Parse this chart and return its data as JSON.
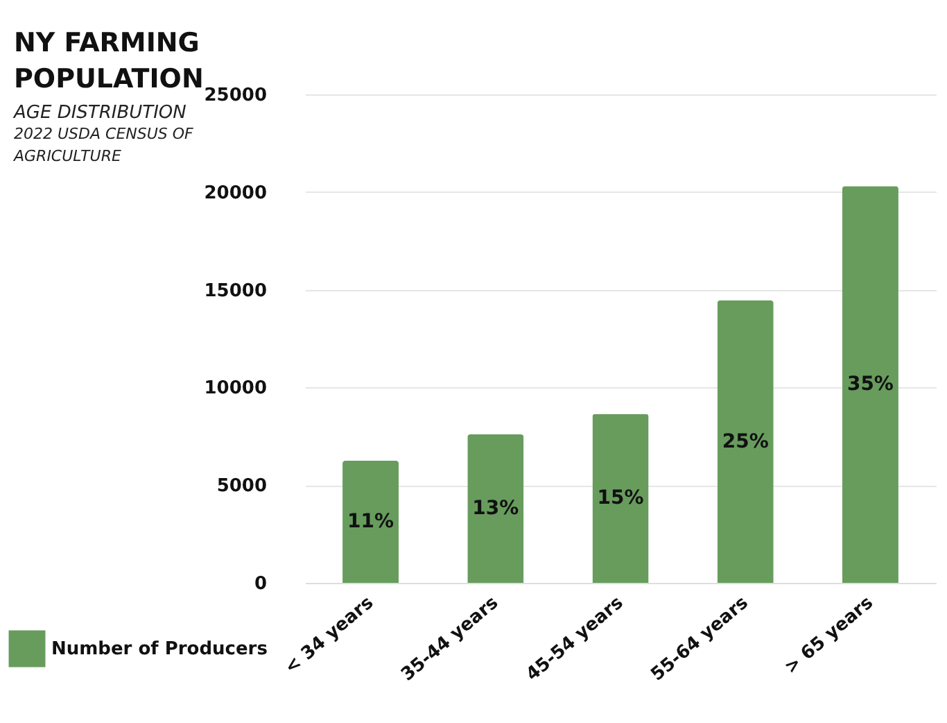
{
  "chart_data": {
    "type": "bar",
    "title": "NY FARMING POPULATION",
    "subtitle": "AGE DISTRIBUTION",
    "annotations": [
      "2022 USDA CENSUS OF AGRICULTURE",
      "11%",
      "13%",
      "15%",
      "25%",
      "35%"
    ],
    "categories": [
      "< 34 years",
      "35-44 years",
      "45-54 years",
      "55-64 years",
      "> 65 years"
    ],
    "series": [
      {
        "name": "Number of Producers",
        "color": "#679c5d",
        "values": [
          6250,
          7600,
          8650,
          14450,
          20300
        ]
      }
    ],
    "ylim": [
      0,
      25000
    ],
    "yticks": [
      0,
      5000,
      10000,
      15000,
      20000,
      25000
    ],
    "grid": "y",
    "legend": "bottom left"
  }
}
